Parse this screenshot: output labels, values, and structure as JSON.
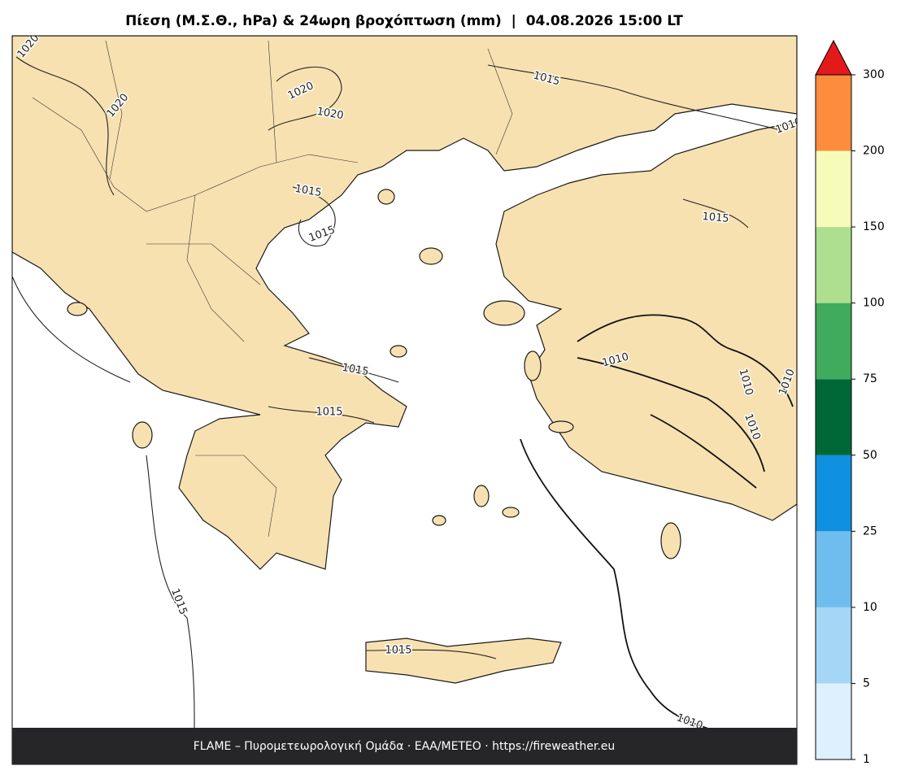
{
  "title": "Πίεση (Μ.Σ.Θ., hPa) & 24ωρη βροχόπτωση (mm)  |  04.08.2026 15:00 LT",
  "footer": "FLAME – Πυρομετεωρολογική Ομάδα · ΕΑΑ/METEO · https://fireweather.eu",
  "contour_labels": [
    "1020",
    "1020",
    "1020",
    "1020",
    "1015",
    "1015",
    "1015",
    "1015",
    "1015",
    "1015",
    "1015",
    "1015",
    "1010",
    "1010",
    "1010",
    "1010",
    "1010",
    "1010"
  ],
  "colorbar": {
    "bounds": [
      1,
      5,
      10,
      25,
      50,
      75,
      100,
      150,
      200,
      300
    ],
    "colors": [
      "#def0fd",
      "#a6d6f6",
      "#6fbdef",
      "#1090e0",
      "#006837",
      "#41ab5d",
      "#addf8e",
      "#f7fbb9",
      "#fd8d3c"
    ],
    "extend_color": "#e31a1c"
  }
}
